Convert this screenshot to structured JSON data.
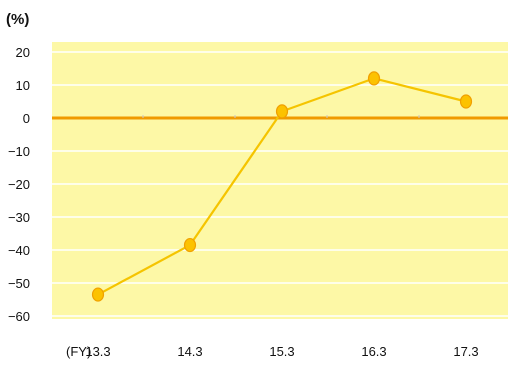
{
  "chart_data": {
    "type": "line",
    "unit_label": "(%)",
    "x_prefix": "(FY)",
    "categories": [
      "13.3",
      "14.3",
      "15.3",
      "16.3",
      "17.3"
    ],
    "series": [
      {
        "values": [
          -53.5,
          -38.5,
          2,
          12,
          5
        ]
      }
    ],
    "ylim": [
      -60,
      20
    ],
    "yticks": [
      20,
      10,
      0,
      -10,
      -20,
      -30,
      -40,
      -50,
      -60
    ],
    "ytick_labels": [
      "20",
      "10",
      "0",
      "−10",
      "−20",
      "−30",
      "−40",
      "−50",
      "−60"
    ],
    "grid": true,
    "colors": {
      "plot_background": "#fdf8a6",
      "line": "#f5c400",
      "marker_fill": "#fcc200",
      "marker_stroke": "#f0a000",
      "zero_line": "#f09a00",
      "grid": "#ffffff",
      "axis": "#c8c8c8",
      "text": "#111111"
    }
  }
}
